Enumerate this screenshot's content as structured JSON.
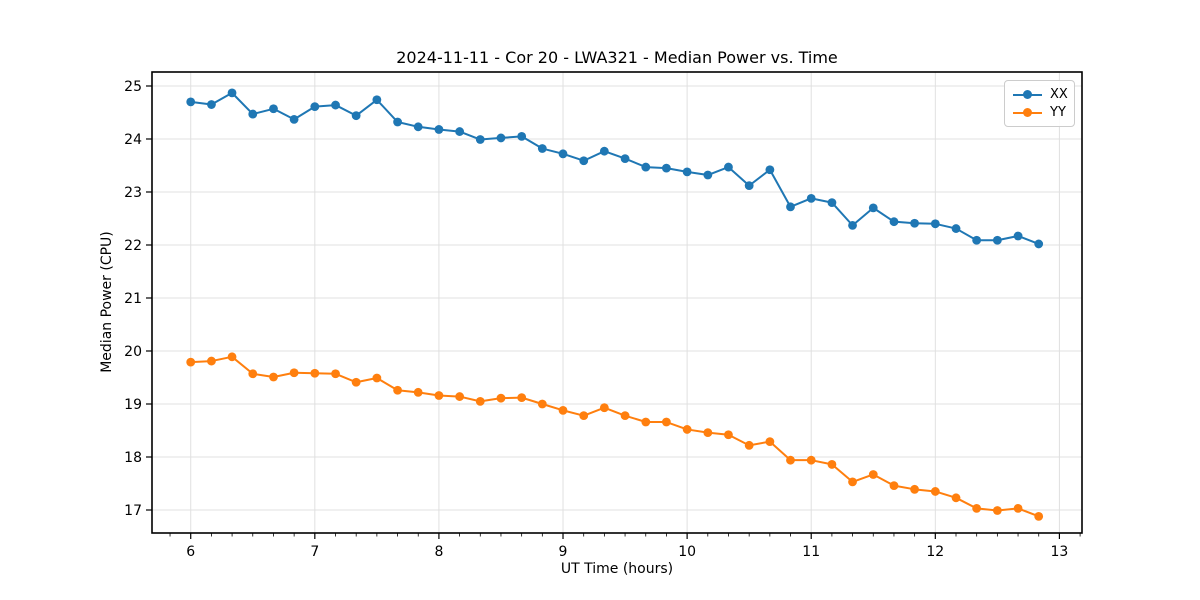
{
  "chart_data": {
    "type": "line",
    "title": "2024-11-11 - Cor 20 - LWA321 - Median Power vs. Time",
    "xlabel": "UT Time (hours)",
    "ylabel": "Median Power (CPU)",
    "xlim": [
      5.688,
      13.182
    ],
    "ylim": [
      16.566,
      25.264
    ],
    "x_ticks": [
      6,
      7,
      8,
      9,
      10,
      11,
      12,
      13
    ],
    "y_ticks": [
      17,
      18,
      19,
      20,
      21,
      22,
      23,
      24,
      25
    ],
    "x_minor_per_major": 6,
    "grid": true,
    "grid_color": "#e0e0e0",
    "legend_position": "upper right",
    "x": [
      6.0,
      6.167,
      6.333,
      6.5,
      6.667,
      6.833,
      7.0,
      7.167,
      7.333,
      7.5,
      7.667,
      7.833,
      8.0,
      8.167,
      8.333,
      8.5,
      8.667,
      8.833,
      9.0,
      9.167,
      9.333,
      9.5,
      9.667,
      9.833,
      10.0,
      10.167,
      10.333,
      10.5,
      10.667,
      10.833,
      11.0,
      11.167,
      11.333,
      11.5,
      11.667,
      11.833,
      12.0,
      12.167,
      12.333,
      12.5,
      12.667,
      12.833
    ],
    "series": [
      {
        "name": "XX",
        "color": "#1f77b4",
        "values": [
          24.7,
          24.65,
          24.87,
          24.47,
          24.57,
          24.37,
          24.61,
          24.64,
          24.44,
          24.74,
          24.32,
          24.23,
          24.18,
          24.14,
          23.99,
          24.02,
          24.05,
          23.82,
          23.72,
          23.59,
          23.77,
          23.63,
          23.47,
          23.45,
          23.38,
          23.32,
          23.47,
          23.12,
          23.42,
          22.72,
          22.88,
          22.8,
          22.37,
          22.7,
          22.44,
          22.41,
          22.4,
          22.31,
          22.09,
          22.09,
          22.17,
          22.02
        ]
      },
      {
        "name": "YY",
        "color": "#ff7f0e",
        "values": [
          19.79,
          19.81,
          19.89,
          19.57,
          19.51,
          19.59,
          19.58,
          19.57,
          19.41,
          19.49,
          19.26,
          19.22,
          19.16,
          19.14,
          19.05,
          19.11,
          19.12,
          19.0,
          18.88,
          18.78,
          18.93,
          18.78,
          18.66,
          18.66,
          18.52,
          18.46,
          18.42,
          18.22,
          18.29,
          17.94,
          17.94,
          17.86,
          17.53,
          17.67,
          17.46,
          17.39,
          17.35,
          17.23,
          17.03,
          16.99,
          17.03,
          16.88
        ]
      }
    ]
  }
}
